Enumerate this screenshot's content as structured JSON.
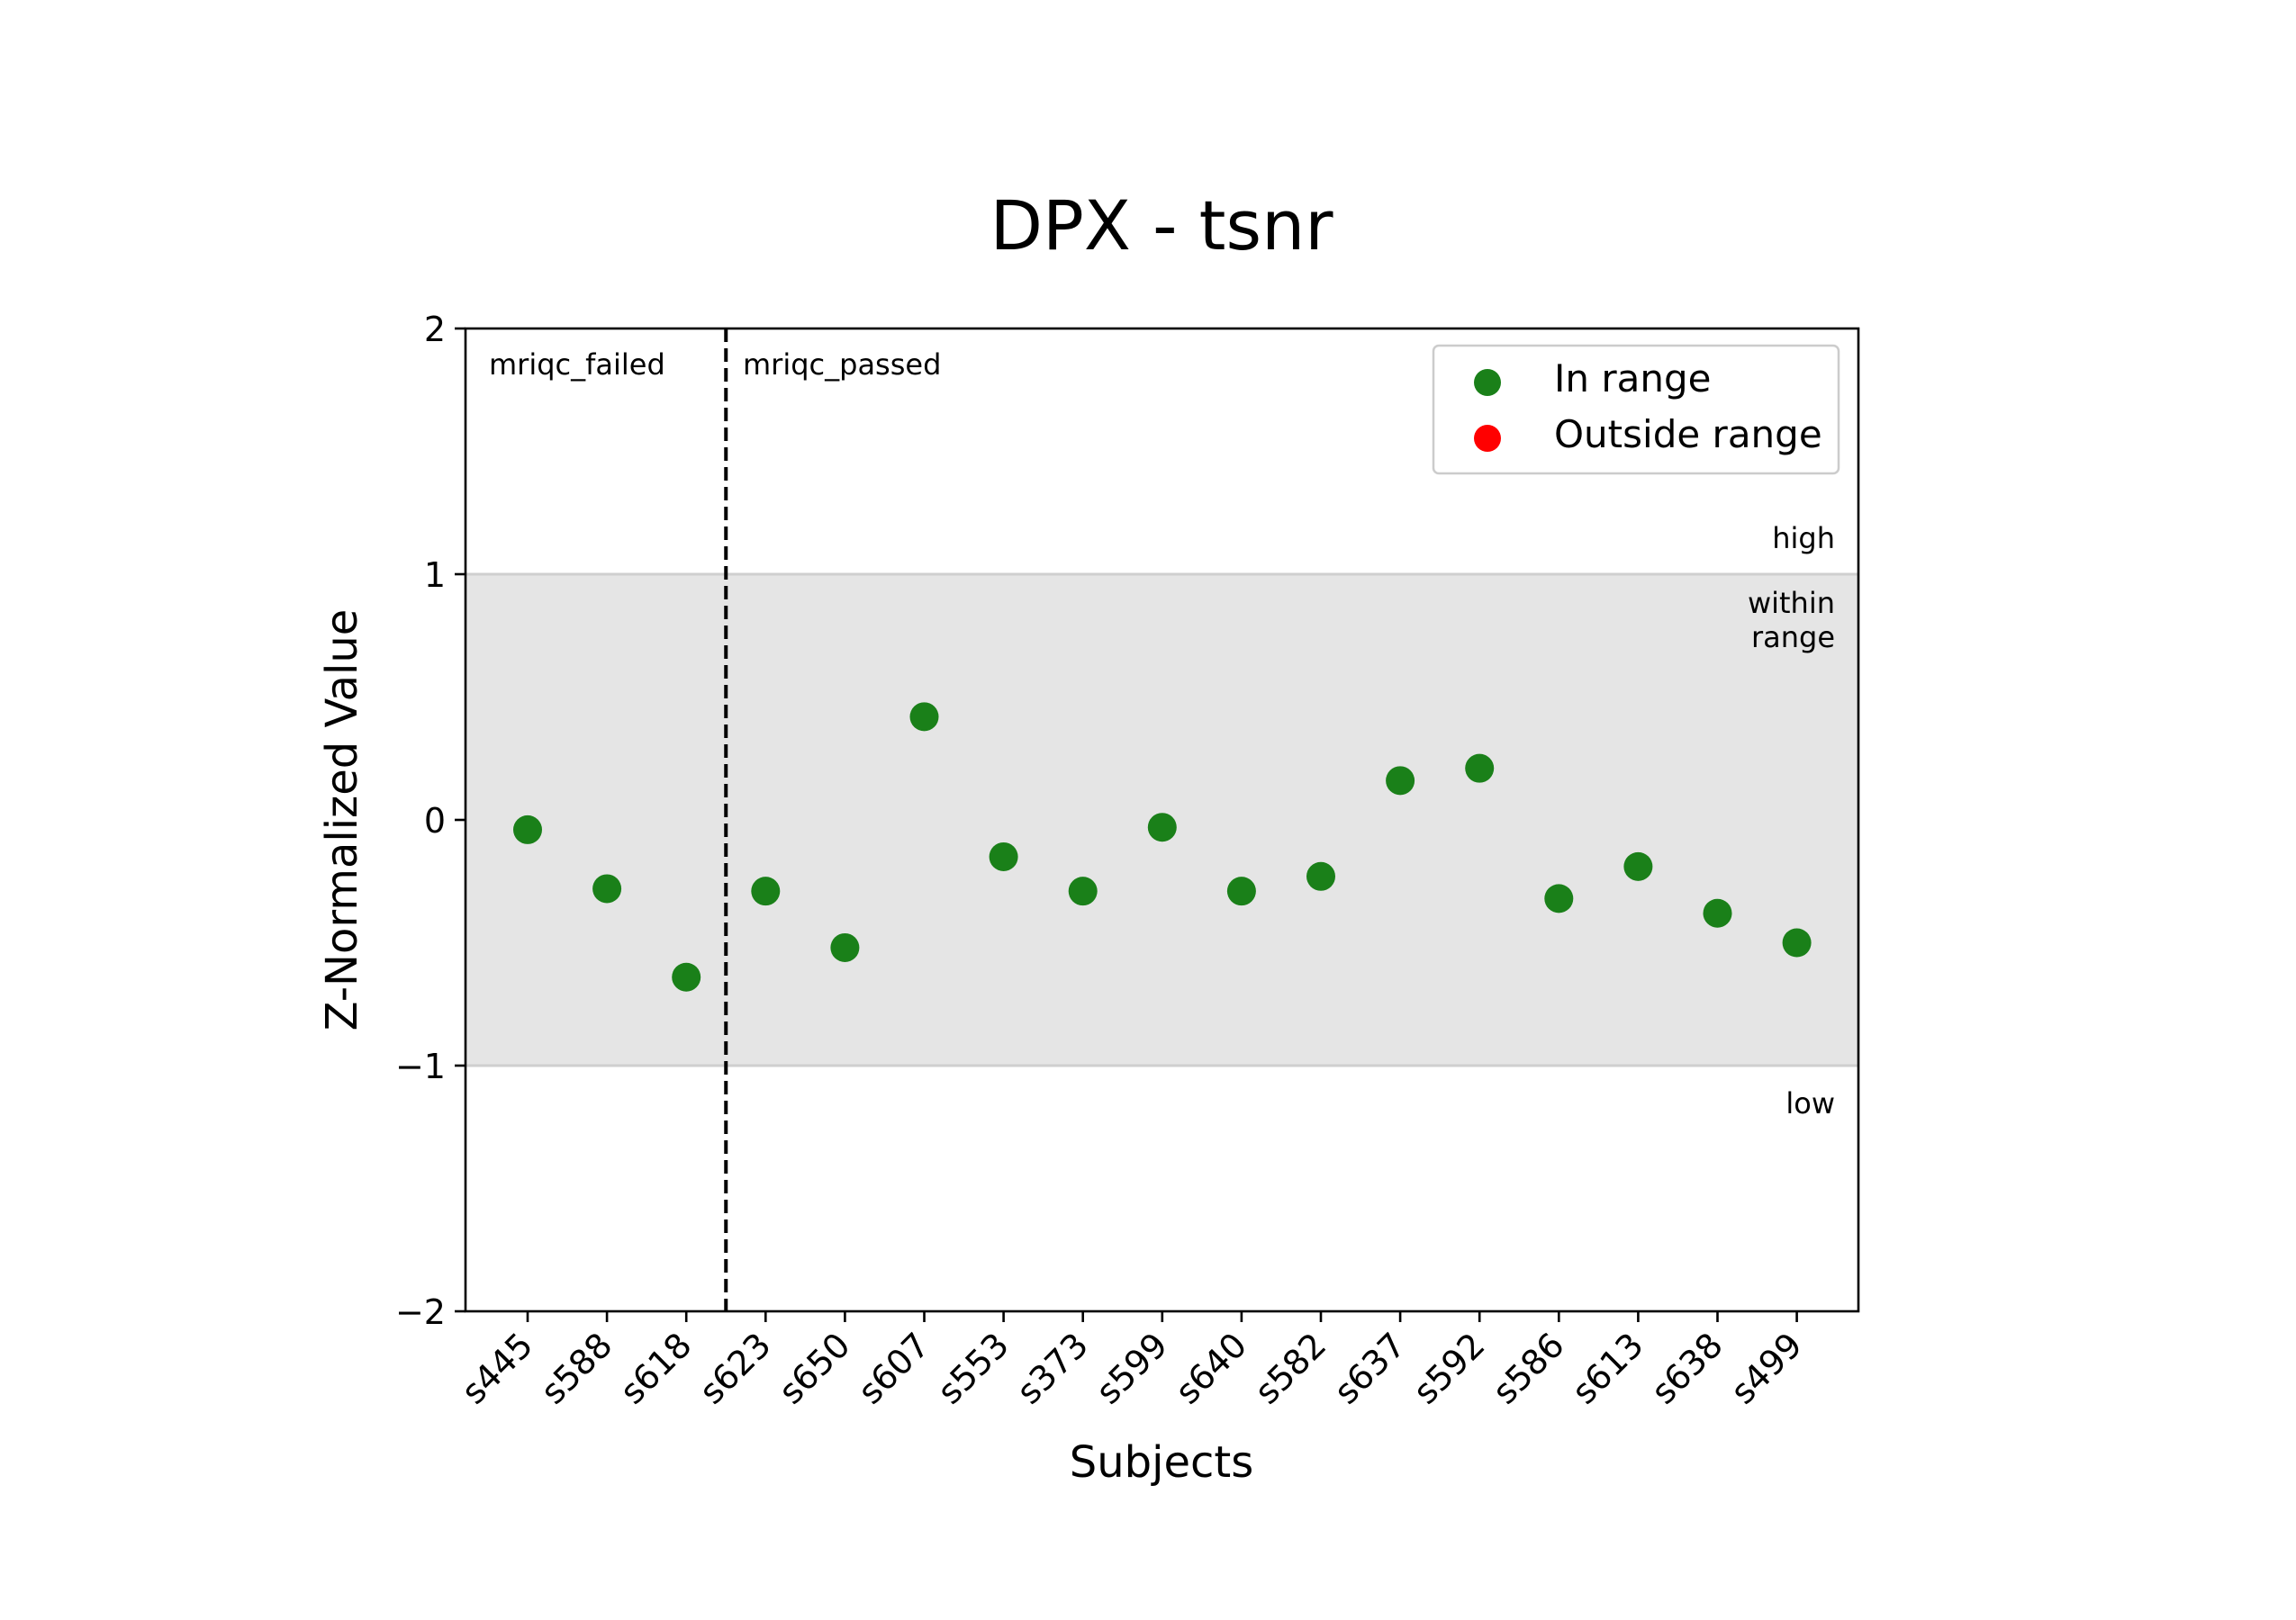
{
  "chart_data": {
    "type": "scatter",
    "title": "DPX - tsnr",
    "xlabel": "Subjects",
    "ylabel": "Z-Normalized Value",
    "ylim": [
      -2,
      2
    ],
    "yticks": [
      -2,
      -1,
      0,
      1,
      2
    ],
    "ytick_labels": [
      "−2",
      "−1",
      "0",
      "1",
      "2"
    ],
    "categories": [
      "s445",
      "s588",
      "s618",
      "s623",
      "s650",
      "s607",
      "s553",
      "s373",
      "s599",
      "s640",
      "s582",
      "s637",
      "s592",
      "s586",
      "s613",
      "s638",
      "s499"
    ],
    "values": [
      -0.04,
      -0.28,
      -0.64,
      -0.29,
      -0.52,
      0.42,
      -0.15,
      -0.29,
      -0.03,
      -0.29,
      -0.23,
      0.16,
      0.21,
      -0.32,
      -0.19,
      -0.38,
      -0.5
    ],
    "status": [
      "In range",
      "In range",
      "In range",
      "In range",
      "In range",
      "In range",
      "In range",
      "In range",
      "In range",
      "In range",
      "In range",
      "In range",
      "In range",
      "In range",
      "In range",
      "In range",
      "In range"
    ],
    "normal_band": [
      -1,
      1
    ],
    "band_labels": {
      "high": "high",
      "within_line1": "within",
      "within_line2": "range",
      "low": "low"
    },
    "group_divider_after_index": 2,
    "group_labels": {
      "left": "mriqc_failed",
      "right": "mriqc_passed"
    },
    "legend": {
      "position": "upper right",
      "entries": [
        {
          "label": "In range",
          "color": "#1a8019"
        },
        {
          "label": "Outside range",
          "color": "#ff0000"
        }
      ]
    },
    "colors": {
      "in_range": "#1a8019",
      "outside_range": "#ff0000",
      "band": "#e5e5e5",
      "band_edge": "#cfcfcf"
    },
    "grid": false
  }
}
